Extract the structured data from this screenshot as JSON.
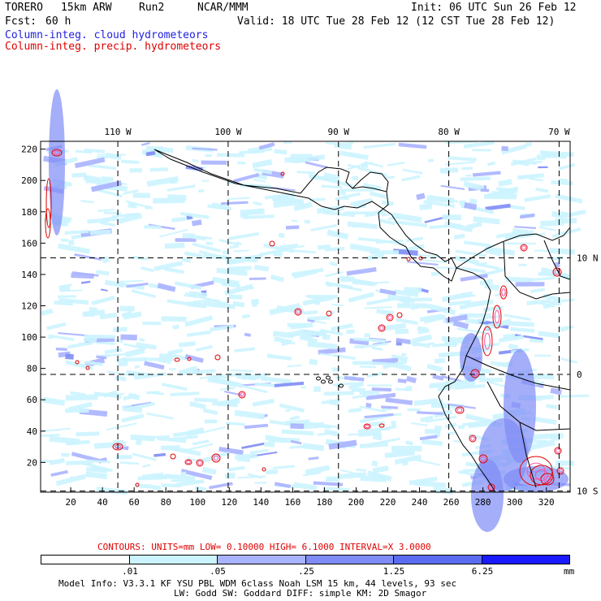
{
  "header": {
    "model": "TORERO",
    "resolution": "15km ARW",
    "run": "Run2",
    "org": "NCAR/MMM",
    "init": "Init: 06 UTC Sun 26 Feb 12",
    "fcst_label": "Fcst:",
    "fcst_value": "60 h",
    "valid": "Valid: 18 UTC Tue 28 Feb 12 (12 CST Tue 28 Feb 12)",
    "field1": "Column-integ. cloud hydrometeors",
    "field2": "Column-integ. precip. hydrometeors"
  },
  "colors": {
    "field1": "#1f1fe0",
    "field2": "#e00000",
    "coast": "#000000",
    "shade_levels": [
      "#ffffff",
      "#ccf4ff",
      "#aab3ff",
      "#7f8cf5",
      "#5c6cf0",
      "#1a1aff"
    ]
  },
  "map": {
    "top_lon_labels": [
      "110 W",
      "100 W",
      "90 W",
      "80 W",
      "70 W"
    ],
    "top_lon_values": [
      -110,
      -100,
      -90,
      -80,
      -70
    ],
    "right_lat_labels": [
      "10 N",
      "0",
      "10 S"
    ],
    "right_lat_values": [
      10,
      0,
      -10
    ],
    "left_y_ticks": [
      "220",
      "200",
      "180",
      "160",
      "140",
      "120",
      "100",
      "80",
      "60",
      "40",
      "20"
    ],
    "left_y_values": [
      220,
      200,
      180,
      160,
      140,
      120,
      100,
      80,
      60,
      40,
      20
    ],
    "bottom_x_ticks": [
      "20",
      "40",
      "60",
      "80",
      "100",
      "120",
      "140",
      "160",
      "180",
      "200",
      "220",
      "240",
      "260",
      "280",
      "300",
      "320"
    ],
    "bottom_x_values": [
      20,
      40,
      60,
      80,
      100,
      120,
      140,
      160,
      180,
      200,
      220,
      240,
      260,
      280,
      300,
      320
    ],
    "grid_range": {
      "x": [
        1,
        335
      ],
      "y": [
        1,
        225
      ]
    },
    "lon_range": [
      -117,
      -69
    ],
    "lat_range": [
      -10.1,
      20
    ]
  },
  "contours": {
    "text": "CONTOURS: UNITS=mm LOW= 0.10000 HIGH= 6.1000 INTERVAL=X 3.0000"
  },
  "legend": {
    "unit": "mm",
    "labels": [
      ".01",
      ".05",
      ".25",
      "1.25",
      "6.25"
    ]
  },
  "footer": {
    "line1": "Model Info: V3.3.1 KF YSU PBL WDM 6class Noah LSM 15 km, 44 levels, 93 sec",
    "line2": "LW: Godd SW: Goddard DIFF: simple KM: 2D Smagor"
  }
}
